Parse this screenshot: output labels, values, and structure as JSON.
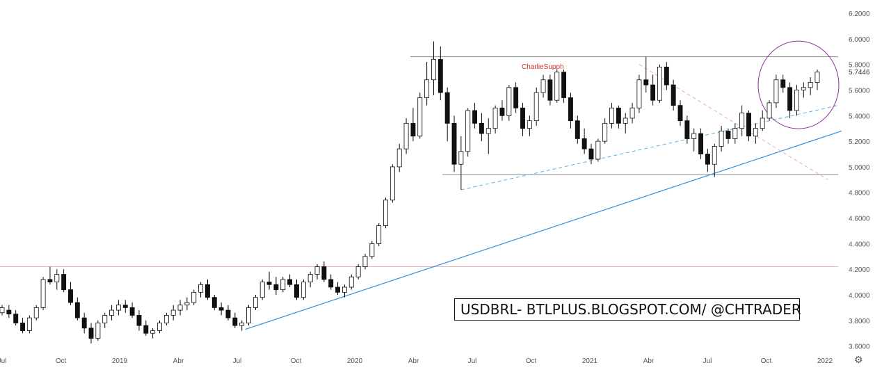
{
  "chart_data": {
    "type": "candlestick",
    "symbol_label": "USDBRL- BTLPLUS.BLOGSPOT.COM/ @CHTRADER",
    "author_label": "CharlieSupph",
    "current_price": "5.7446",
    "y_ticks": [
      "6.2000",
      "6.0000",
      "5.8000",
      "5.6000",
      "5.4000",
      "5.2000",
      "5.0000",
      "4.8000",
      "4.6000",
      "4.4000",
      "4.2000",
      "4.0000",
      "3.8000",
      "3.6000"
    ],
    "x_ticks": [
      "Jul",
      "Oct",
      "2019",
      "Abr",
      "Jul",
      "Oct",
      "2020",
      "Abr",
      "Jul",
      "Oct",
      "2021",
      "Abr",
      "Jul",
      "Oct",
      "2022"
    ],
    "ylim": [
      3.56,
      6.26
    ],
    "candles": [
      [
        3.86,
        3.92,
        3.84,
        3.9
      ],
      [
        3.88,
        3.92,
        3.82,
        3.85
      ],
      [
        3.85,
        3.88,
        3.76,
        3.78
      ],
      [
        3.78,
        3.82,
        3.7,
        3.72
      ],
      [
        3.72,
        3.84,
        3.7,
        3.82
      ],
      [
        3.82,
        3.92,
        3.8,
        3.9
      ],
      [
        3.9,
        4.14,
        3.88,
        4.12
      ],
      [
        4.12,
        4.22,
        4.08,
        4.1
      ],
      [
        4.1,
        4.2,
        4.04,
        4.16
      ],
      [
        4.16,
        4.2,
        4.02,
        4.04
      ],
      [
        4.04,
        4.1,
        3.92,
        3.94
      ],
      [
        3.94,
        3.98,
        3.8,
        3.82
      ],
      [
        3.82,
        3.86,
        3.7,
        3.74
      ],
      [
        3.74,
        3.78,
        3.62,
        3.66
      ],
      [
        3.66,
        3.8,
        3.64,
        3.78
      ],
      [
        3.78,
        3.86,
        3.74,
        3.84
      ],
      [
        3.84,
        3.92,
        3.8,
        3.88
      ],
      [
        3.88,
        3.96,
        3.84,
        3.92
      ],
      [
        3.92,
        3.96,
        3.86,
        3.9
      ],
      [
        3.9,
        3.94,
        3.82,
        3.84
      ],
      [
        3.84,
        3.88,
        3.72,
        3.76
      ],
      [
        3.76,
        3.8,
        3.68,
        3.7
      ],
      [
        3.7,
        3.74,
        3.66,
        3.72
      ],
      [
        3.72,
        3.8,
        3.7,
        3.78
      ],
      [
        3.78,
        3.86,
        3.76,
        3.84
      ],
      [
        3.84,
        3.92,
        3.8,
        3.88
      ],
      [
        3.88,
        3.96,
        3.84,
        3.92
      ],
      [
        3.92,
        3.98,
        3.88,
        3.94
      ],
      [
        3.94,
        4.04,
        3.92,
        4.02
      ],
      [
        4.02,
        4.1,
        3.98,
        4.08
      ],
      [
        4.08,
        4.12,
        3.96,
        3.98
      ],
      [
        3.98,
        4.0,
        3.88,
        3.9
      ],
      [
        3.9,
        3.94,
        3.84,
        3.88
      ],
      [
        3.88,
        3.92,
        3.8,
        3.82
      ],
      [
        3.82,
        3.86,
        3.74,
        3.76
      ],
      [
        3.76,
        3.8,
        3.72,
        3.78
      ],
      [
        3.78,
        3.92,
        3.76,
        3.9
      ],
      [
        3.9,
        4.0,
        3.88,
        3.98
      ],
      [
        3.98,
        4.12,
        3.96,
        4.1
      ],
      [
        4.1,
        4.18,
        4.04,
        4.08
      ],
      [
        4.08,
        4.14,
        4.0,
        4.04
      ],
      [
        4.04,
        4.14,
        4.02,
        4.12
      ],
      [
        4.12,
        4.16,
        4.06,
        4.08
      ],
      [
        4.08,
        4.12,
        3.96,
        3.98
      ],
      [
        3.98,
        4.12,
        3.96,
        4.1
      ],
      [
        4.1,
        4.18,
        4.06,
        4.16
      ],
      [
        4.16,
        4.24,
        4.12,
        4.22
      ],
      [
        4.22,
        4.26,
        4.1,
        4.12
      ],
      [
        4.12,
        4.16,
        4.04,
        4.06
      ],
      [
        4.06,
        4.1,
        4.0,
        4.02
      ],
      [
        4.02,
        4.08,
        3.98,
        4.06
      ],
      [
        4.06,
        4.16,
        4.04,
        4.14
      ],
      [
        4.14,
        4.24,
        4.12,
        4.22
      ],
      [
        4.22,
        4.32,
        4.2,
        4.3
      ],
      [
        4.3,
        4.42,
        4.28,
        4.4
      ],
      [
        4.4,
        4.56,
        4.38,
        4.54
      ],
      [
        4.54,
        4.76,
        4.52,
        4.74
      ],
      [
        4.74,
        5.02,
        4.72,
        5.0
      ],
      [
        5.0,
        5.18,
        4.96,
        5.14
      ],
      [
        5.14,
        5.38,
        5.1,
        5.34
      ],
      [
        5.34,
        5.46,
        5.2,
        5.24
      ],
      [
        5.24,
        5.58,
        5.22,
        5.54
      ],
      [
        5.54,
        5.82,
        5.48,
        5.68
      ],
      [
        5.68,
        5.98,
        5.56,
        5.84
      ],
      [
        5.84,
        5.94,
        5.52,
        5.58
      ],
      [
        5.58,
        5.62,
        5.2,
        5.34
      ],
      [
        5.34,
        5.4,
        4.96,
        5.02
      ],
      [
        5.02,
        5.24,
        4.82,
        5.12
      ],
      [
        5.12,
        5.46,
        5.08,
        5.44
      ],
      [
        5.44,
        5.5,
        5.3,
        5.34
      ],
      [
        5.34,
        5.42,
        5.2,
        5.26
      ],
      [
        5.26,
        5.38,
        5.1,
        5.3
      ],
      [
        5.3,
        5.48,
        5.26,
        5.46
      ],
      [
        5.46,
        5.52,
        5.36,
        5.4
      ],
      [
        5.4,
        5.64,
        5.36,
        5.62
      ],
      [
        5.62,
        5.66,
        5.42,
        5.46
      ],
      [
        5.46,
        5.5,
        5.24,
        5.3
      ],
      [
        5.3,
        5.4,
        5.24,
        5.36
      ],
      [
        5.36,
        5.62,
        5.32,
        5.58
      ],
      [
        5.58,
        5.72,
        5.54,
        5.68
      ],
      [
        5.68,
        5.72,
        5.48,
        5.52
      ],
      [
        5.52,
        5.76,
        5.5,
        5.74
      ],
      [
        5.74,
        5.76,
        5.5,
        5.54
      ],
      [
        5.54,
        5.58,
        5.3,
        5.36
      ],
      [
        5.36,
        5.4,
        5.18,
        5.22
      ],
      [
        5.22,
        5.3,
        5.1,
        5.14
      ],
      [
        5.14,
        5.18,
        5.02,
        5.06
      ],
      [
        5.06,
        5.22,
        5.04,
        5.2
      ],
      [
        5.2,
        5.38,
        5.18,
        5.34
      ],
      [
        5.34,
        5.5,
        5.3,
        5.46
      ],
      [
        5.46,
        5.48,
        5.3,
        5.34
      ],
      [
        5.34,
        5.42,
        5.26,
        5.38
      ],
      [
        5.38,
        5.5,
        5.34,
        5.46
      ],
      [
        5.46,
        5.72,
        5.42,
        5.68
      ],
      [
        5.68,
        5.86,
        5.58,
        5.64
      ],
      [
        5.64,
        5.72,
        5.48,
        5.52
      ],
      [
        5.52,
        5.8,
        5.5,
        5.78
      ],
      [
        5.78,
        5.82,
        5.6,
        5.64
      ],
      [
        5.64,
        5.68,
        5.44,
        5.48
      ],
      [
        5.48,
        5.52,
        5.32,
        5.36
      ],
      [
        5.36,
        5.4,
        5.18,
        5.22
      ],
      [
        5.22,
        5.3,
        5.12,
        5.26
      ],
      [
        5.26,
        5.3,
        5.06,
        5.1
      ],
      [
        5.1,
        5.14,
        4.96,
        5.02
      ],
      [
        5.02,
        5.18,
        4.92,
        5.16
      ],
      [
        5.16,
        5.32,
        5.12,
        5.28
      ],
      [
        5.28,
        5.3,
        5.18,
        5.22
      ],
      [
        5.22,
        5.34,
        5.18,
        5.3
      ],
      [
        5.3,
        5.48,
        5.24,
        5.42
      ],
      [
        5.42,
        5.44,
        5.2,
        5.24
      ],
      [
        5.24,
        5.34,
        5.18,
        5.3
      ],
      [
        5.3,
        5.44,
        5.28,
        5.38
      ],
      [
        5.38,
        5.52,
        5.36,
        5.5
      ],
      [
        5.5,
        5.72,
        5.46,
        5.68
      ],
      [
        5.68,
        5.72,
        5.58,
        5.62
      ],
      [
        5.62,
        5.66,
        5.38,
        5.44
      ],
      [
        5.44,
        5.64,
        5.4,
        5.6
      ],
      [
        5.6,
        5.66,
        5.54,
        5.62
      ],
      [
        5.62,
        5.7,
        5.56,
        5.66
      ],
      [
        5.66,
        5.76,
        5.6,
        5.74
      ]
    ],
    "horizontal_lines": [
      {
        "y": 5.86,
        "color": "#8a8a8a"
      },
      {
        "y": 4.94,
        "color": "#8a8a8a"
      },
      {
        "y": 4.22,
        "color": "#f3b4b4"
      }
    ],
    "colors": {
      "candle_up": "#ffffff",
      "candle_down": "#111111",
      "candle_border": "#111111",
      "trendline": "#2f8fe0",
      "dashed_trend": "#5ab0e0",
      "dashed_down": "#f0a8b8",
      "ellipse": "#8e2f9e",
      "axis_text": "#555555",
      "author_text": "#d32f2f"
    }
  }
}
